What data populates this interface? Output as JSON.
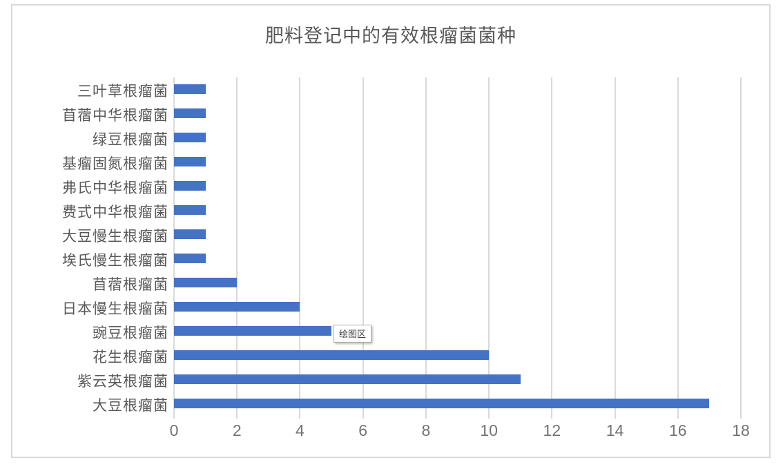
{
  "chart": {
    "tooltip_label": "绘图区"
  },
  "chart_data": {
    "type": "bar",
    "orientation": "horizontal",
    "title": "肥料登记中的有效根瘤菌菌种",
    "categories": [
      "三叶草根瘤菌",
      "苜蓿中华根瘤菌",
      "绿豆根瘤菌",
      "基瘤固氮根瘤菌",
      "弗氏中华根瘤菌",
      "费式中华根瘤菌",
      "大豆慢生根瘤菌",
      "埃氏慢生根瘤菌",
      "苜蓿根瘤菌",
      "日本慢生根瘤菌",
      "豌豆根瘤菌",
      "花生根瘤菌",
      "紫云英根瘤菌",
      "大豆根瘤菌"
    ],
    "values": [
      1,
      1,
      1,
      1,
      1,
      1,
      1,
      1,
      2,
      4,
      5,
      10,
      11,
      17
    ],
    "categories_order": "top-to-bottom",
    "xlabel": "",
    "ylabel": "",
    "xlim": [
      0,
      18
    ],
    "xticks": [
      0,
      2,
      4,
      6,
      8,
      10,
      12,
      14,
      16,
      18
    ],
    "grid": true,
    "legend": "none",
    "bar_color": "#4472c4",
    "gridline_color": "#d9d9d9",
    "text_color": "#595959"
  }
}
